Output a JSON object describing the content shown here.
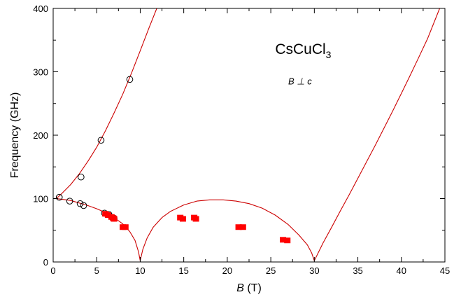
{
  "chart_data": {
    "type": "scatter",
    "xlabel_var": "B",
    "xlabel_unit": " (T)",
    "ylabel": "Frequency (GHz)",
    "xlim": [
      0,
      45
    ],
    "ylim": [
      0,
      400
    ],
    "x_ticks": [
      0,
      5,
      10,
      15,
      20,
      25,
      30,
      35,
      40,
      45
    ],
    "y_ticks": [
      0,
      100,
      200,
      300,
      400
    ],
    "grid": false,
    "legend": "none",
    "annotations": {
      "compound_main": "CsCuCl",
      "compound_sub": "3",
      "geometry": "B ⊥ c"
    },
    "series": [
      {
        "marker": "open-circle",
        "color": "#000000",
        "points": [
          [
            0.7,
            102
          ],
          [
            1.9,
            96
          ],
          [
            3.1,
            92
          ],
          [
            3.5,
            89
          ],
          [
            5.9,
            77
          ],
          [
            6.4,
            75
          ],
          [
            6.8,
            70
          ],
          [
            7.0,
            69
          ],
          [
            3.2,
            134
          ],
          [
            5.5,
            192
          ],
          [
            8.8,
            288
          ]
        ]
      },
      {
        "marker": "filled-square",
        "color": "#ff0000",
        "points": [
          [
            6.0,
            76
          ],
          [
            6.3,
            74
          ],
          [
            6.7,
            71
          ],
          [
            6.9,
            69
          ],
          [
            7.0,
            68
          ],
          [
            8.0,
            55
          ],
          [
            8.3,
            55
          ],
          [
            14.6,
            70
          ],
          [
            14.9,
            68
          ],
          [
            16.2,
            70
          ],
          [
            16.4,
            68
          ],
          [
            21.3,
            55
          ],
          [
            21.8,
            55
          ],
          [
            26.4,
            35
          ],
          [
            26.9,
            34
          ]
        ]
      }
    ],
    "curves": [
      {
        "color": "#cc0000",
        "points": [
          [
            0.3,
            100
          ],
          [
            0.6,
            103
          ],
          [
            1,
            108
          ],
          [
            2,
            122
          ],
          [
            3,
            139
          ],
          [
            4,
            159
          ],
          [
            5,
            181
          ],
          [
            6,
            207
          ],
          [
            7,
            235
          ],
          [
            8,
            265
          ],
          [
            9,
            298
          ],
          [
            10,
            333
          ],
          [
            11,
            369
          ],
          [
            11.9,
            400
          ]
        ]
      },
      {
        "color": "#cc0000",
        "points": [
          [
            0.3,
            100
          ],
          [
            1,
            99
          ],
          [
            2,
            97
          ],
          [
            3,
            93
          ],
          [
            4,
            89
          ],
          [
            5,
            84
          ],
          [
            6,
            78
          ],
          [
            7,
            70
          ],
          [
            8,
            60
          ],
          [
            8.8,
            48
          ],
          [
            9.4,
            34
          ],
          [
            9.8,
            16
          ],
          [
            10.0,
            2
          ]
        ]
      },
      {
        "color": "#cc0000",
        "points": [
          [
            10.0,
            2
          ],
          [
            10.3,
            20
          ],
          [
            10.8,
            38
          ],
          [
            11.5,
            55
          ],
          [
            12.5,
            70
          ],
          [
            13.5,
            80
          ],
          [
            15,
            90
          ],
          [
            16.5,
            96
          ],
          [
            18,
            98
          ],
          [
            19.5,
            98
          ],
          [
            21,
            96
          ],
          [
            22.5,
            92
          ],
          [
            24,
            85
          ],
          [
            25.5,
            74
          ],
          [
            27,
            59
          ],
          [
            28.2,
            43
          ],
          [
            29.2,
            27
          ],
          [
            29.7,
            14
          ],
          [
            30.0,
            2
          ]
        ]
      },
      {
        "color": "#cc0000",
        "points": [
          [
            30.0,
            2
          ],
          [
            31,
            30
          ],
          [
            32,
            55
          ],
          [
            33,
            81
          ],
          [
            34,
            106
          ],
          [
            35,
            132
          ],
          [
            36,
            158
          ],
          [
            37,
            184
          ],
          [
            38,
            211
          ],
          [
            39,
            238
          ],
          [
            40,
            266
          ],
          [
            41,
            294
          ],
          [
            42,
            323
          ],
          [
            43,
            352
          ],
          [
            44.4,
            400
          ]
        ]
      }
    ]
  }
}
